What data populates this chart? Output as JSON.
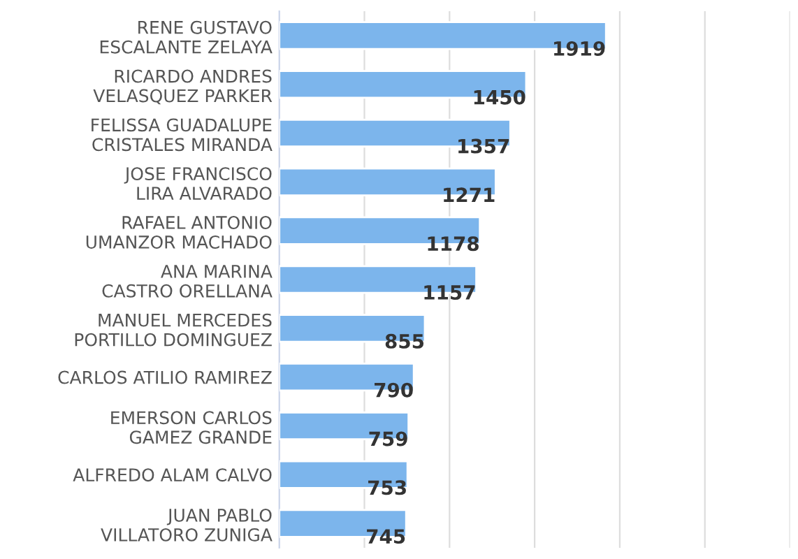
{
  "chart_data": {
    "type": "bar",
    "orientation": "horizontal",
    "categories": [
      "RENE GUSTAVO ESCALANTE ZELAYA",
      "RICARDO ANDRES VELASQUEZ PARKER",
      "FELISSA GUADALUPE CRISTALES MIRANDA",
      "JOSE FRANCISCO LIRA ALVARADO",
      "RAFAEL ANTONIO UMANZOR MACHADO",
      "ANA MARINA CASTRO ORELLANA",
      "MANUEL MERCEDES PORTILLO DOMINGUEZ",
      "CARLOS ATILIO RAMIREZ",
      "EMERSON CARLOS GAMEZ GRANDE",
      "ALFREDO ALAM CALVO",
      "JUAN PABLO VILLATORO ZUNIGA"
    ],
    "values": [
      1919,
      1450,
      1357,
      1271,
      1178,
      1157,
      855,
      790,
      759,
      753,
      745
    ],
    "color": "#7cb5ec",
    "xlim": [
      0,
      3000
    ],
    "xticks": [
      {
        "value": 0,
        "label": null
      },
      {
        "value": 500,
        "label": null
      },
      {
        "value": 1000,
        "label": null
      },
      {
        "value": 1500,
        "label": null
      },
      {
        "value": 2000,
        "label": null
      },
      {
        "value": 2500,
        "label": null
      },
      {
        "value": 3000,
        "label": null
      }
    ],
    "tick_labels": "y",
    "grid": "x",
    "data_labels": true
  }
}
